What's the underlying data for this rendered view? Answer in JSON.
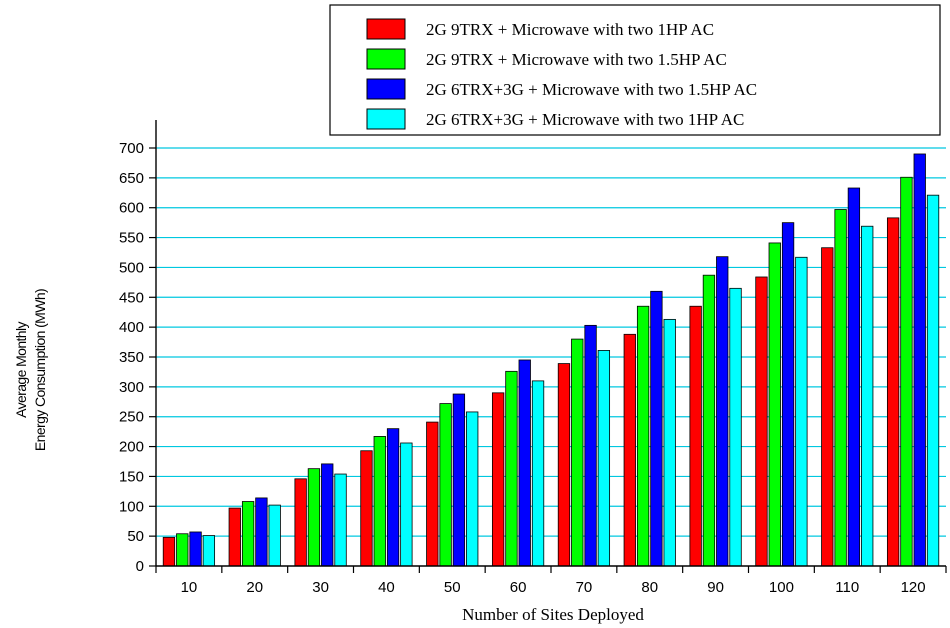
{
  "chart_data": {
    "type": "bar",
    "title": "",
    "xlabel": "Number of Sites Deployed",
    "ylabel": [
      "Average Monthly",
      "Energy Consumption (MWh)"
    ],
    "categories": [
      "10",
      "20",
      "30",
      "40",
      "50",
      "60",
      "70",
      "80",
      "90",
      "100",
      "110",
      "120"
    ],
    "ylim": [
      0,
      700
    ],
    "yticks": [
      0,
      50,
      100,
      150,
      200,
      250,
      300,
      350,
      400,
      450,
      500,
      550,
      600,
      650,
      700
    ],
    "grid": "horizontal",
    "legend_position": "top-right",
    "series": [
      {
        "name": "2G 9TRX + Microwave with two 1HP AC",
        "color": "#ff0000",
        "values": [
          48,
          97,
          146,
          193,
          241,
          290,
          339,
          388,
          435,
          484,
          533,
          583
        ]
      },
      {
        "name": "2G 9TRX + Microwave with two 1.5HP AC",
        "color": "#00ff00",
        "values": [
          54,
          108,
          163,
          217,
          272,
          326,
          380,
          435,
          487,
          541,
          597,
          651
        ]
      },
      {
        "name": "2G 6TRX+3G + Microwave with two 1.5HP AC",
        "color": "#0000ff",
        "values": [
          57,
          114,
          171,
          230,
          288,
          345,
          403,
          460,
          518,
          575,
          633,
          690
        ]
      },
      {
        "name": "2G 6TRX+3G + Microwave with two 1HP AC",
        "color": "#00ffff",
        "values": [
          51,
          102,
          154,
          206,
          258,
          310,
          361,
          413,
          465,
          517,
          569,
          621
        ]
      }
    ]
  }
}
